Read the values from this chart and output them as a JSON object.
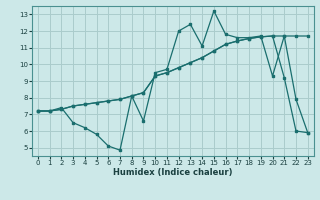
{
  "xlabel": "Humidex (Indice chaleur)",
  "xlim": [
    -0.5,
    23.5
  ],
  "ylim": [
    4.5,
    13.5
  ],
  "yticks": [
    5,
    6,
    7,
    8,
    9,
    10,
    11,
    12,
    13
  ],
  "xticks": [
    0,
    1,
    2,
    3,
    4,
    5,
    6,
    7,
    8,
    9,
    10,
    11,
    12,
    13,
    14,
    15,
    16,
    17,
    18,
    19,
    20,
    21,
    22,
    23
  ],
  "bg_color": "#cce8e8",
  "grid_color": "#aacccc",
  "line_color": "#1a6e6e",
  "line1_x": [
    0,
    1,
    2,
    3,
    4,
    5,
    6,
    7,
    8,
    9,
    10,
    11,
    12,
    13,
    14,
    15,
    16,
    17,
    18,
    19,
    20,
    21,
    22,
    23
  ],
  "line1_y": [
    7.2,
    7.2,
    7.4,
    6.5,
    6.2,
    5.8,
    5.1,
    4.85,
    8.1,
    6.6,
    9.5,
    9.7,
    12.0,
    12.4,
    11.1,
    13.2,
    11.8,
    11.6,
    11.6,
    11.7,
    9.3,
    11.7,
    7.9,
    5.9
  ],
  "line2_x": [
    0,
    1,
    2,
    3,
    4,
    5,
    6,
    7,
    8,
    9,
    10,
    11,
    12,
    13,
    14,
    15,
    16,
    17,
    18,
    19,
    20,
    21,
    22,
    23
  ],
  "line2_y": [
    7.2,
    7.2,
    7.3,
    7.5,
    7.6,
    7.7,
    7.8,
    7.9,
    8.1,
    8.3,
    9.3,
    9.5,
    9.8,
    10.1,
    10.4,
    10.8,
    11.2,
    11.4,
    11.55,
    11.65,
    11.7,
    11.7,
    11.7,
    11.7
  ],
  "line3_x": [
    0,
    1,
    2,
    3,
    4,
    5,
    6,
    7,
    8,
    9,
    10,
    11,
    12,
    13,
    14,
    15,
    16,
    17,
    18,
    19,
    20,
    21,
    22,
    23
  ],
  "line3_y": [
    7.2,
    7.2,
    7.3,
    7.5,
    7.6,
    7.7,
    7.8,
    7.9,
    8.1,
    8.3,
    9.3,
    9.5,
    9.8,
    10.1,
    10.4,
    10.8,
    11.2,
    11.4,
    11.55,
    11.65,
    11.7,
    9.2,
    6.0,
    5.9
  ]
}
